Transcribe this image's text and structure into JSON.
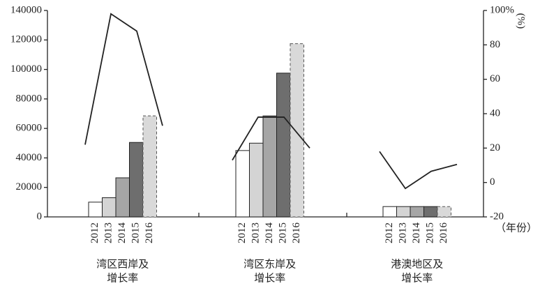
{
  "chart_data": {
    "type": "bar",
    "categories": [
      [
        "湾区西岸及",
        "增长率"
      ],
      [
        "湾区东岸及",
        "增长率"
      ],
      [
        "港澳地区及",
        "增长率"
      ]
    ],
    "series": [
      {
        "name": "2012",
        "color": "#ffffff",
        "values": [
          10000,
          45000,
          7000
        ]
      },
      {
        "name": "2013",
        "color": "#d4d4d4",
        "values": [
          13000,
          50000,
          7000
        ]
      },
      {
        "name": "2014",
        "color": "#a6a6a6",
        "values": [
          26500,
          68500,
          7000
        ]
      },
      {
        "name": "2015",
        "color": "#6e6e6e",
        "values": [
          50500,
          97500,
          7000
        ]
      },
      {
        "name": "2016",
        "color": "#d9d9d9",
        "dashed": true,
        "values": [
          68500,
          117500,
          7000
        ]
      }
    ],
    "growth": {
      "axis": "y2",
      "color": "#222222",
      "values": [
        [
          22,
          98,
          88,
          33
        ],
        [
          13,
          38,
          38,
          20
        ],
        [
          18,
          -3.5,
          6.5,
          10.5
        ]
      ]
    },
    "ylim": [
      0,
      140000
    ],
    "yticks": [
      0,
      20000,
      40000,
      60000,
      80000,
      100000,
      120000,
      140000
    ],
    "y2lim": [
      -20,
      100
    ],
    "y2ticks": [
      -20,
      0,
      20,
      40,
      60,
      80,
      {
        "value": 100,
        "label": "100%"
      }
    ],
    "y2_unit": "(%)",
    "x_unit": "（年份）"
  }
}
